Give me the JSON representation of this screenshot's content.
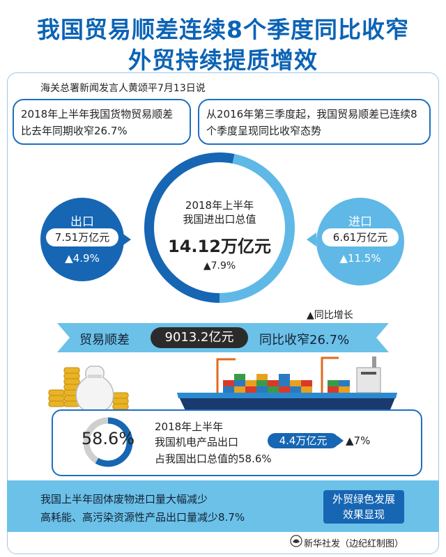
{
  "title": {
    "line1": "我国贸易顺差连续8个季度同比收窄",
    "line2": "外贸持续提质增效"
  },
  "source": "海关总署新闻发言人黄颂平7月13日说",
  "callouts": {
    "left": "2018年上半年我国货物贸易顺差比去年同期收窄26.7%",
    "right": "从2016年第三季度起，我国贸易顺差已连续8个季度呈现同比收窄态势"
  },
  "export": {
    "label": "出口",
    "value": "7.51万亿元",
    "growth": "▲4.9%"
  },
  "import": {
    "label": "进口",
    "value": "6.61万亿元",
    "growth": "▲11.5%"
  },
  "total": {
    "line1": "2018年上半年",
    "line2": "我国进出口总值",
    "value": "14.12万亿元",
    "growth": "▲7.9%"
  },
  "legend": "▲同比增长",
  "surplus": {
    "label": "贸易顺差",
    "value": "9013.2亿元",
    "change": "同比收窄26.7%"
  },
  "mech": {
    "share_text": "58.6%",
    "share_fraction": 0.586,
    "line1": "2018年上半年",
    "line2_prefix": "我国机电产品出口",
    "value": "4.4万亿元",
    "growth": "▲7%",
    "line3": "占我国出口总值的58.6%"
  },
  "waste": {
    "line1": "我国上半年固体废物进口量大幅减少",
    "line2": "高耗能、高污染资源性产品出口量减少8.7%",
    "badge_line1": "外贸绿色发展",
    "badge_line2": "效果显现"
  },
  "credit": "新华社发（边纪红制图）",
  "colors": {
    "primary": "#1666b3",
    "light": "#5fb8e6",
    "band": "#6cc1e9",
    "dark_pill": "#2b2b2b"
  }
}
